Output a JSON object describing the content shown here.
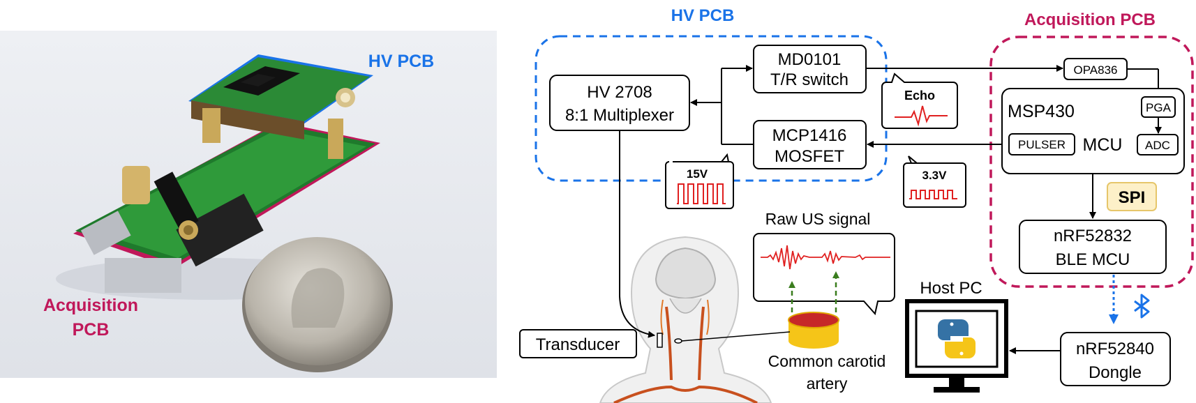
{
  "photo": {
    "hv_pcb_label": "HV PCB",
    "acq_label_line1": "Acquisition",
    "acq_label_line2": "PCB"
  },
  "groups": {
    "hv_title": "HV PCB",
    "acq_title": "Acquisition PCB"
  },
  "blocks": {
    "md0101_l1": "MD0101",
    "md0101_l2": "T/R switch",
    "hv2708_l1": "HV 2708",
    "hv2708_l2": "8:1 Multiplexer",
    "mcp_l1": "MCP1416",
    "mcp_l2": "MOSFET",
    "opa": "OPA836",
    "msp": "MSP430",
    "mcu": "MCU",
    "pga": "PGA",
    "pulser": "PULSER",
    "adc": "ADC",
    "spi": "SPI",
    "nrf32_l1": "nRF52832",
    "nrf32_l2": "BLE MCU",
    "nrf40_l1": "nRF52840",
    "nrf40_l2": "Dongle"
  },
  "callouts": {
    "echo": "Echo",
    "v15": "15V",
    "v33": "3.3V",
    "raw_us": "Raw US signal"
  },
  "labels": {
    "host_pc": "Host PC",
    "transducer": "Transducer",
    "carotid_l1": "Common carotid",
    "carotid_l2": "artery"
  },
  "colors": {
    "hv_blue": "#1a73e8",
    "acq_magenta": "#c0185a",
    "signal_red": "#e02020",
    "spi_fill": "#fdf0c8",
    "green_dashed": "#3a7d1e"
  }
}
